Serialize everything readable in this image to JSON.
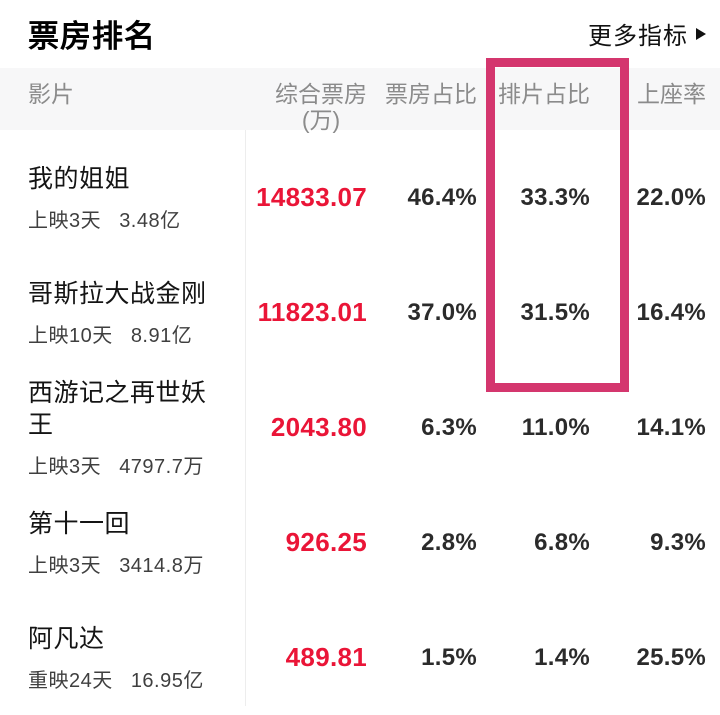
{
  "page": {
    "title": "票房排名",
    "more_label": "更多指标"
  },
  "table": {
    "columns": [
      {
        "key": "film",
        "label": "影片"
      },
      {
        "key": "box_office",
        "label": "综合票房",
        "sub": "(万)"
      },
      {
        "key": "box_share",
        "label": "票房占比"
      },
      {
        "key": "screening_share",
        "label": "排片占比",
        "highlighted": true
      },
      {
        "key": "attendance",
        "label": "上座率"
      }
    ],
    "rows": [
      {
        "title": "我的姐姐",
        "release": "上映3天",
        "total": "3.48亿",
        "box_office": "14833.07",
        "box_share": "46.4%",
        "screening_share": "33.3%",
        "attendance": "22.0%"
      },
      {
        "title": "哥斯拉大战金刚",
        "release": "上映10天",
        "total": "8.91亿",
        "box_office": "11823.01",
        "box_share": "37.0%",
        "screening_share": "31.5%",
        "attendance": "16.4%"
      },
      {
        "title": "西游记之再世妖王",
        "release": "上映3天",
        "total": "4797.7万",
        "box_office": "2043.80",
        "box_share": "6.3%",
        "screening_share": "11.0%",
        "attendance": "14.1%"
      },
      {
        "title": "第十一回",
        "release": "上映3天",
        "total": "3414.8万",
        "box_office": "926.25",
        "box_share": "2.8%",
        "screening_share": "6.8%",
        "attendance": "9.3%"
      },
      {
        "title": "阿凡达",
        "release": "重映24天",
        "total": "16.95亿",
        "box_office": "489.81",
        "box_share": "1.5%",
        "screening_share": "1.4%",
        "attendance": "25.5%"
      }
    ]
  },
  "colors": {
    "accent_red": "#EA1537",
    "highlight_pink": "#D4366E",
    "header_bg": "#F7F7F8",
    "header_text": "#8B8B8B"
  }
}
